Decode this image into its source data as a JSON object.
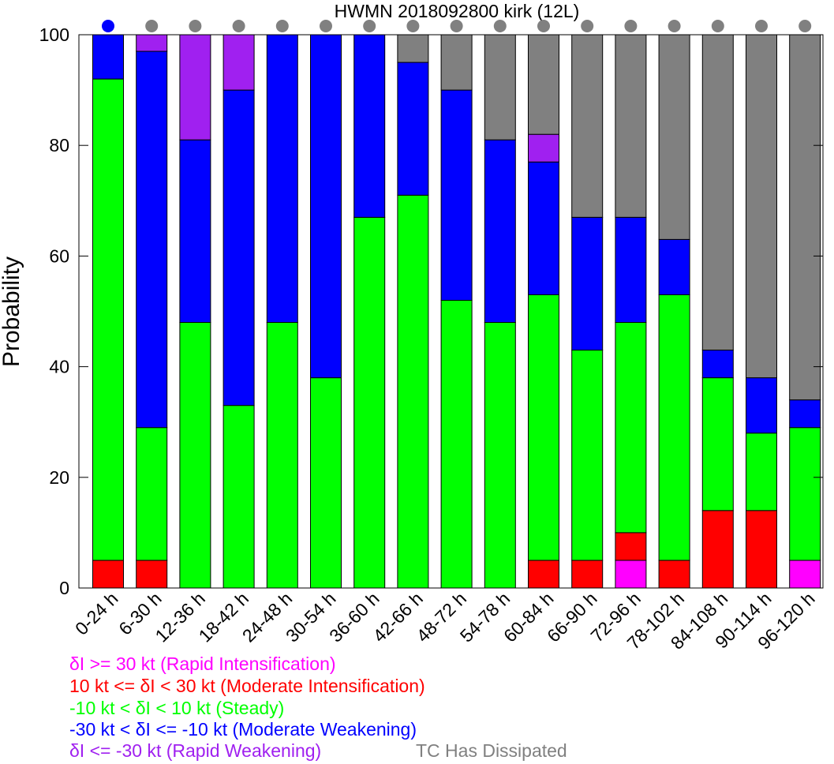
{
  "chart_data": {
    "type": "bar",
    "stacked": true,
    "title": "HWMN 2018092800 kirk (12L)",
    "ylabel": "Probability",
    "xlabel": "",
    "ylim": [
      0,
      100
    ],
    "yticks": [
      0,
      20,
      40,
      60,
      80,
      100
    ],
    "categories": [
      "0-24 h",
      "6-30 h",
      "12-36 h",
      "18-42 h",
      "24-48 h",
      "30-54 h",
      "36-60 h",
      "42-66 h",
      "48-72 h",
      "54-78 h",
      "60-84 h",
      "66-90 h",
      "72-96 h",
      "78-102 h",
      "84-108 h",
      "90-114 h",
      "96-120 h"
    ],
    "indicator_dots": [
      "blue",
      "gray",
      "gray",
      "gray",
      "gray",
      "gray",
      "gray",
      "gray",
      "gray",
      "gray",
      "gray",
      "gray",
      "gray",
      "gray",
      "gray",
      "gray",
      "gray"
    ],
    "series": [
      {
        "key": "ri",
        "name": "δI >= 30 kt (Rapid Intensification)",
        "color": "#ff00ff",
        "values": [
          0,
          0,
          0,
          0,
          0,
          0,
          0,
          0,
          0,
          0,
          0,
          0,
          5,
          0,
          0,
          0,
          5
        ]
      },
      {
        "key": "mi",
        "name": "10 kt <= δI < 30 kt (Moderate Intensification)",
        "color": "#ff0000",
        "values": [
          5,
          5,
          0,
          0,
          0,
          0,
          0,
          0,
          0,
          0,
          5,
          5,
          5,
          5,
          14,
          14,
          0
        ]
      },
      {
        "key": "st",
        "name": "-10 kt < δI < 10 kt (Steady)",
        "color": "#00ff00",
        "values": [
          87,
          24,
          48,
          33,
          48,
          38,
          67,
          71,
          52,
          48,
          48,
          38,
          38,
          48,
          24,
          14,
          24
        ]
      },
      {
        "key": "mw",
        "name": "-30 kt < δI <= -10 kt (Moderate Weakening)",
        "color": "#0000ff",
        "values": [
          8,
          68,
          33,
          57,
          52,
          62,
          33,
          24,
          38,
          33,
          24,
          24,
          19,
          10,
          5,
          10,
          5
        ]
      },
      {
        "key": "rw",
        "name": "δI <= -30 kt (Rapid Weakening)",
        "color": "#a020f0",
        "values": [
          0,
          3,
          19,
          10,
          0,
          0,
          0,
          0,
          0,
          0,
          5,
          0,
          0,
          0,
          0,
          0,
          0
        ]
      },
      {
        "key": "ds",
        "name": "TC Has Dissipated",
        "color": "#808080",
        "values": [
          0,
          0,
          0,
          0,
          0,
          0,
          0,
          5,
          10,
          19,
          18,
          33,
          33,
          37,
          57,
          62,
          66
        ]
      }
    ],
    "legend_position": "below-left",
    "grid": false
  }
}
